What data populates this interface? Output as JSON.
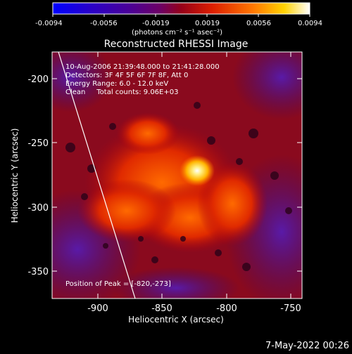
{
  "colorbar": {
    "ticks": [
      "-0.0094",
      "-0.0056",
      "-0.0019",
      "0.0019",
      "0.0056",
      "0.0094"
    ],
    "unit_label": "(photons cm⁻² s⁻¹ asec⁻²)",
    "colors": [
      "#0000ff",
      "#2a00c8",
      "#4b0096",
      "#6e0064",
      "#960019",
      "#dc1e00",
      "#ff7800",
      "#ffd200",
      "#ffffff"
    ]
  },
  "title": "Reconstructed RHESSI Image",
  "overlay": {
    "line1": "10-Aug-2006 21:39:48.000 to 21:41:28.000",
    "line2": "Detectors: 3F 4F 5F 6F 7F 8F, Att 0",
    "line3": "Energy Range: 6.0 - 12.0 keV",
    "line4": "Clean     Total counts: 9.06E+03",
    "peak": "Position of Peak = [-820,-273]"
  },
  "axes": {
    "xlabel": "Heliocentric X (arcsec)",
    "ylabel": "Heliocentric Y (arcsec)",
    "x_ticks": [
      {
        "value": -900,
        "label": "-900"
      },
      {
        "value": -850,
        "label": "-850"
      },
      {
        "value": -800,
        "label": "-800"
      },
      {
        "value": -750,
        "label": "-750"
      }
    ],
    "y_ticks": [
      {
        "value": -200,
        "label": "-200"
      },
      {
        "value": -250,
        "label": "-250"
      },
      {
        "value": -300,
        "label": "-300"
      },
      {
        "value": -350,
        "label": "-350"
      }
    ],
    "xlim": [
      -935,
      -738
    ],
    "ylim": [
      -372,
      -174
    ]
  },
  "peak_position": [
    -820,
    -273
  ],
  "footer_date": "7-May-2022 00:26"
}
